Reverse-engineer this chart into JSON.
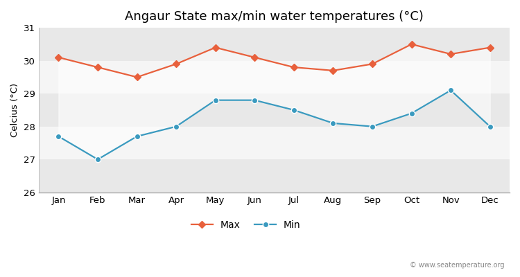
{
  "title": "Angaur State max/min water temperatures (°C)",
  "ylabel": "Celcius (°C)",
  "months": [
    "Jan",
    "Feb",
    "Mar",
    "Apr",
    "May",
    "Jun",
    "Jul",
    "Aug",
    "Sep",
    "Oct",
    "Nov",
    "Dec"
  ],
  "max_values": [
    30.1,
    29.8,
    29.5,
    29.9,
    30.4,
    30.1,
    29.8,
    29.7,
    29.9,
    30.5,
    30.2,
    30.4
  ],
  "min_values": [
    27.7,
    27.0,
    27.7,
    28.0,
    28.8,
    28.8,
    28.5,
    28.1,
    28.0,
    28.4,
    29.1,
    28.0
  ],
  "max_color": "#e8603c",
  "min_color": "#3a9abf",
  "ylim": [
    26,
    31
  ],
  "yticks": [
    26,
    27,
    28,
    29,
    30,
    31
  ],
  "fig_bg_color": "#ffffff",
  "plot_bg_color": "#ffffff",
  "band_colors": [
    "#e8e8e8",
    "#f5f5f5"
  ],
  "watermark": "© www.seatemperature.org",
  "legend_max": "Max",
  "legend_min": "Min"
}
